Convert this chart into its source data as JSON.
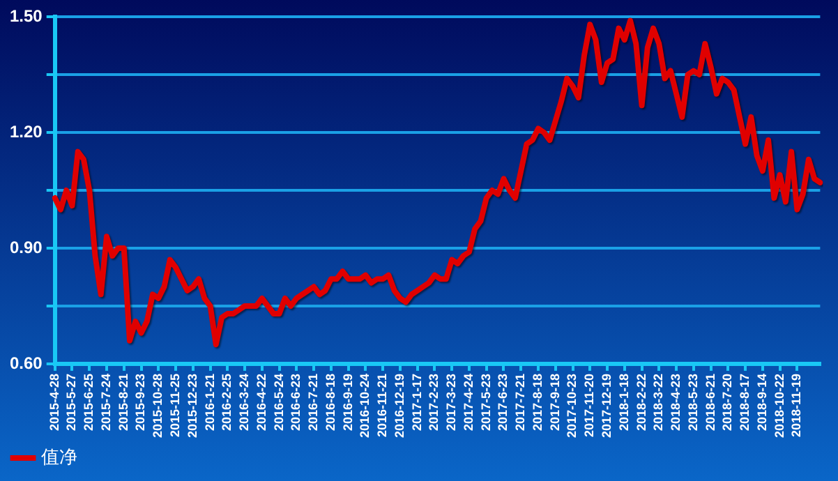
{
  "chart_data": {
    "type": "line",
    "categories": [
      "2015-4-28",
      null,
      null,
      "2015-5-27",
      null,
      null,
      "2015-6-25",
      null,
      null,
      "2015-7-24",
      null,
      null,
      "2015-8-21",
      null,
      null,
      "2015-9-23",
      null,
      null,
      "2015-10-28",
      null,
      null,
      "2015-11-25",
      null,
      null,
      "2015-12-23",
      null,
      null,
      "2016-1-21",
      null,
      null,
      "2016-2-25",
      null,
      null,
      "2016-3-24",
      null,
      null,
      "2016-4-22",
      null,
      null,
      "2016-5-24",
      null,
      null,
      "2016-6-23",
      null,
      null,
      "2016-7-21",
      null,
      null,
      "2016-8-18",
      null,
      null,
      "2016-9-19",
      null,
      null,
      "2016-10-24",
      null,
      null,
      "2016-11-21",
      null,
      null,
      "2016-12-19",
      null,
      null,
      "2017-1-17",
      null,
      null,
      "2017-2-23",
      null,
      null,
      "2017-3-23",
      null,
      null,
      "2017-4-24",
      null,
      null,
      "2017-5-23",
      null,
      null,
      "2017-6-23",
      null,
      null,
      "2017-7-21",
      null,
      null,
      "2017-8-18",
      null,
      null,
      "2017-9-18",
      null,
      null,
      "2017-10-23",
      null,
      null,
      "2017-11-20",
      null,
      null,
      "2017-12-19",
      null,
      null,
      "2018-1-18",
      null,
      null,
      "2018-2-22",
      null,
      null,
      "2018-3-22",
      null,
      null,
      "2018-4-23",
      null,
      null,
      "2018-5-23",
      null,
      null,
      "2018-6-21",
      null,
      null,
      "2018-7-20",
      null,
      null,
      "2018-8-17",
      null,
      null,
      "2018-9-14",
      null,
      null,
      "2018-10-22",
      null,
      null,
      "2018-11-19",
      null,
      null,
      null,
      null
    ],
    "series": [
      {
        "name": "值净",
        "color": "#e00000",
        "values": [
          1.03,
          1.0,
          1.05,
          1.01,
          1.15,
          1.13,
          1.05,
          0.88,
          0.78,
          0.93,
          0.88,
          0.9,
          0.9,
          0.66,
          0.71,
          0.68,
          0.71,
          0.78,
          0.77,
          0.8,
          0.87,
          0.85,
          0.82,
          0.79,
          0.8,
          0.82,
          0.77,
          0.75,
          0.65,
          0.72,
          0.73,
          0.73,
          0.74,
          0.75,
          0.75,
          0.75,
          0.77,
          0.75,
          0.73,
          0.73,
          0.77,
          0.75,
          0.77,
          0.78,
          0.79,
          0.8,
          0.78,
          0.79,
          0.82,
          0.82,
          0.84,
          0.82,
          0.82,
          0.82,
          0.83,
          0.81,
          0.82,
          0.82,
          0.83,
          0.79,
          0.77,
          0.76,
          0.78,
          0.79,
          0.8,
          0.81,
          0.83,
          0.82,
          0.82,
          0.87,
          0.86,
          0.88,
          0.89,
          0.95,
          0.97,
          1.03,
          1.05,
          1.04,
          1.08,
          1.05,
          1.03,
          1.1,
          1.17,
          1.18,
          1.21,
          1.2,
          1.18,
          1.23,
          1.28,
          1.34,
          1.32,
          1.29,
          1.4,
          1.48,
          1.44,
          1.33,
          1.38,
          1.39,
          1.47,
          1.44,
          1.49,
          1.43,
          1.27,
          1.42,
          1.47,
          1.43,
          1.34,
          1.36,
          1.3,
          1.24,
          1.35,
          1.36,
          1.35,
          1.43,
          1.37,
          1.3,
          1.34,
          1.33,
          1.31,
          1.24,
          1.17,
          1.24,
          1.14,
          1.1,
          1.18,
          1.03,
          1.09,
          1.02,
          1.15,
          1.0,
          1.04,
          1.13,
          1.08,
          1.07
        ]
      }
    ],
    "ylim": [
      0.6,
      1.5
    ],
    "yticks": [
      {
        "value": 0.6,
        "label": "0.60"
      },
      {
        "value": 0.75,
        "label": null
      },
      {
        "value": 0.9,
        "label": "0.90"
      },
      {
        "value": 1.05,
        "label": null
      },
      {
        "value": 1.2,
        "label": "1.20"
      },
      {
        "value": 1.35,
        "label": null
      },
      {
        "value": 1.5,
        "label": "1.50"
      }
    ],
    "grid": "y",
    "legend": "bottom left",
    "marker": "none",
    "line_style": "solid"
  }
}
